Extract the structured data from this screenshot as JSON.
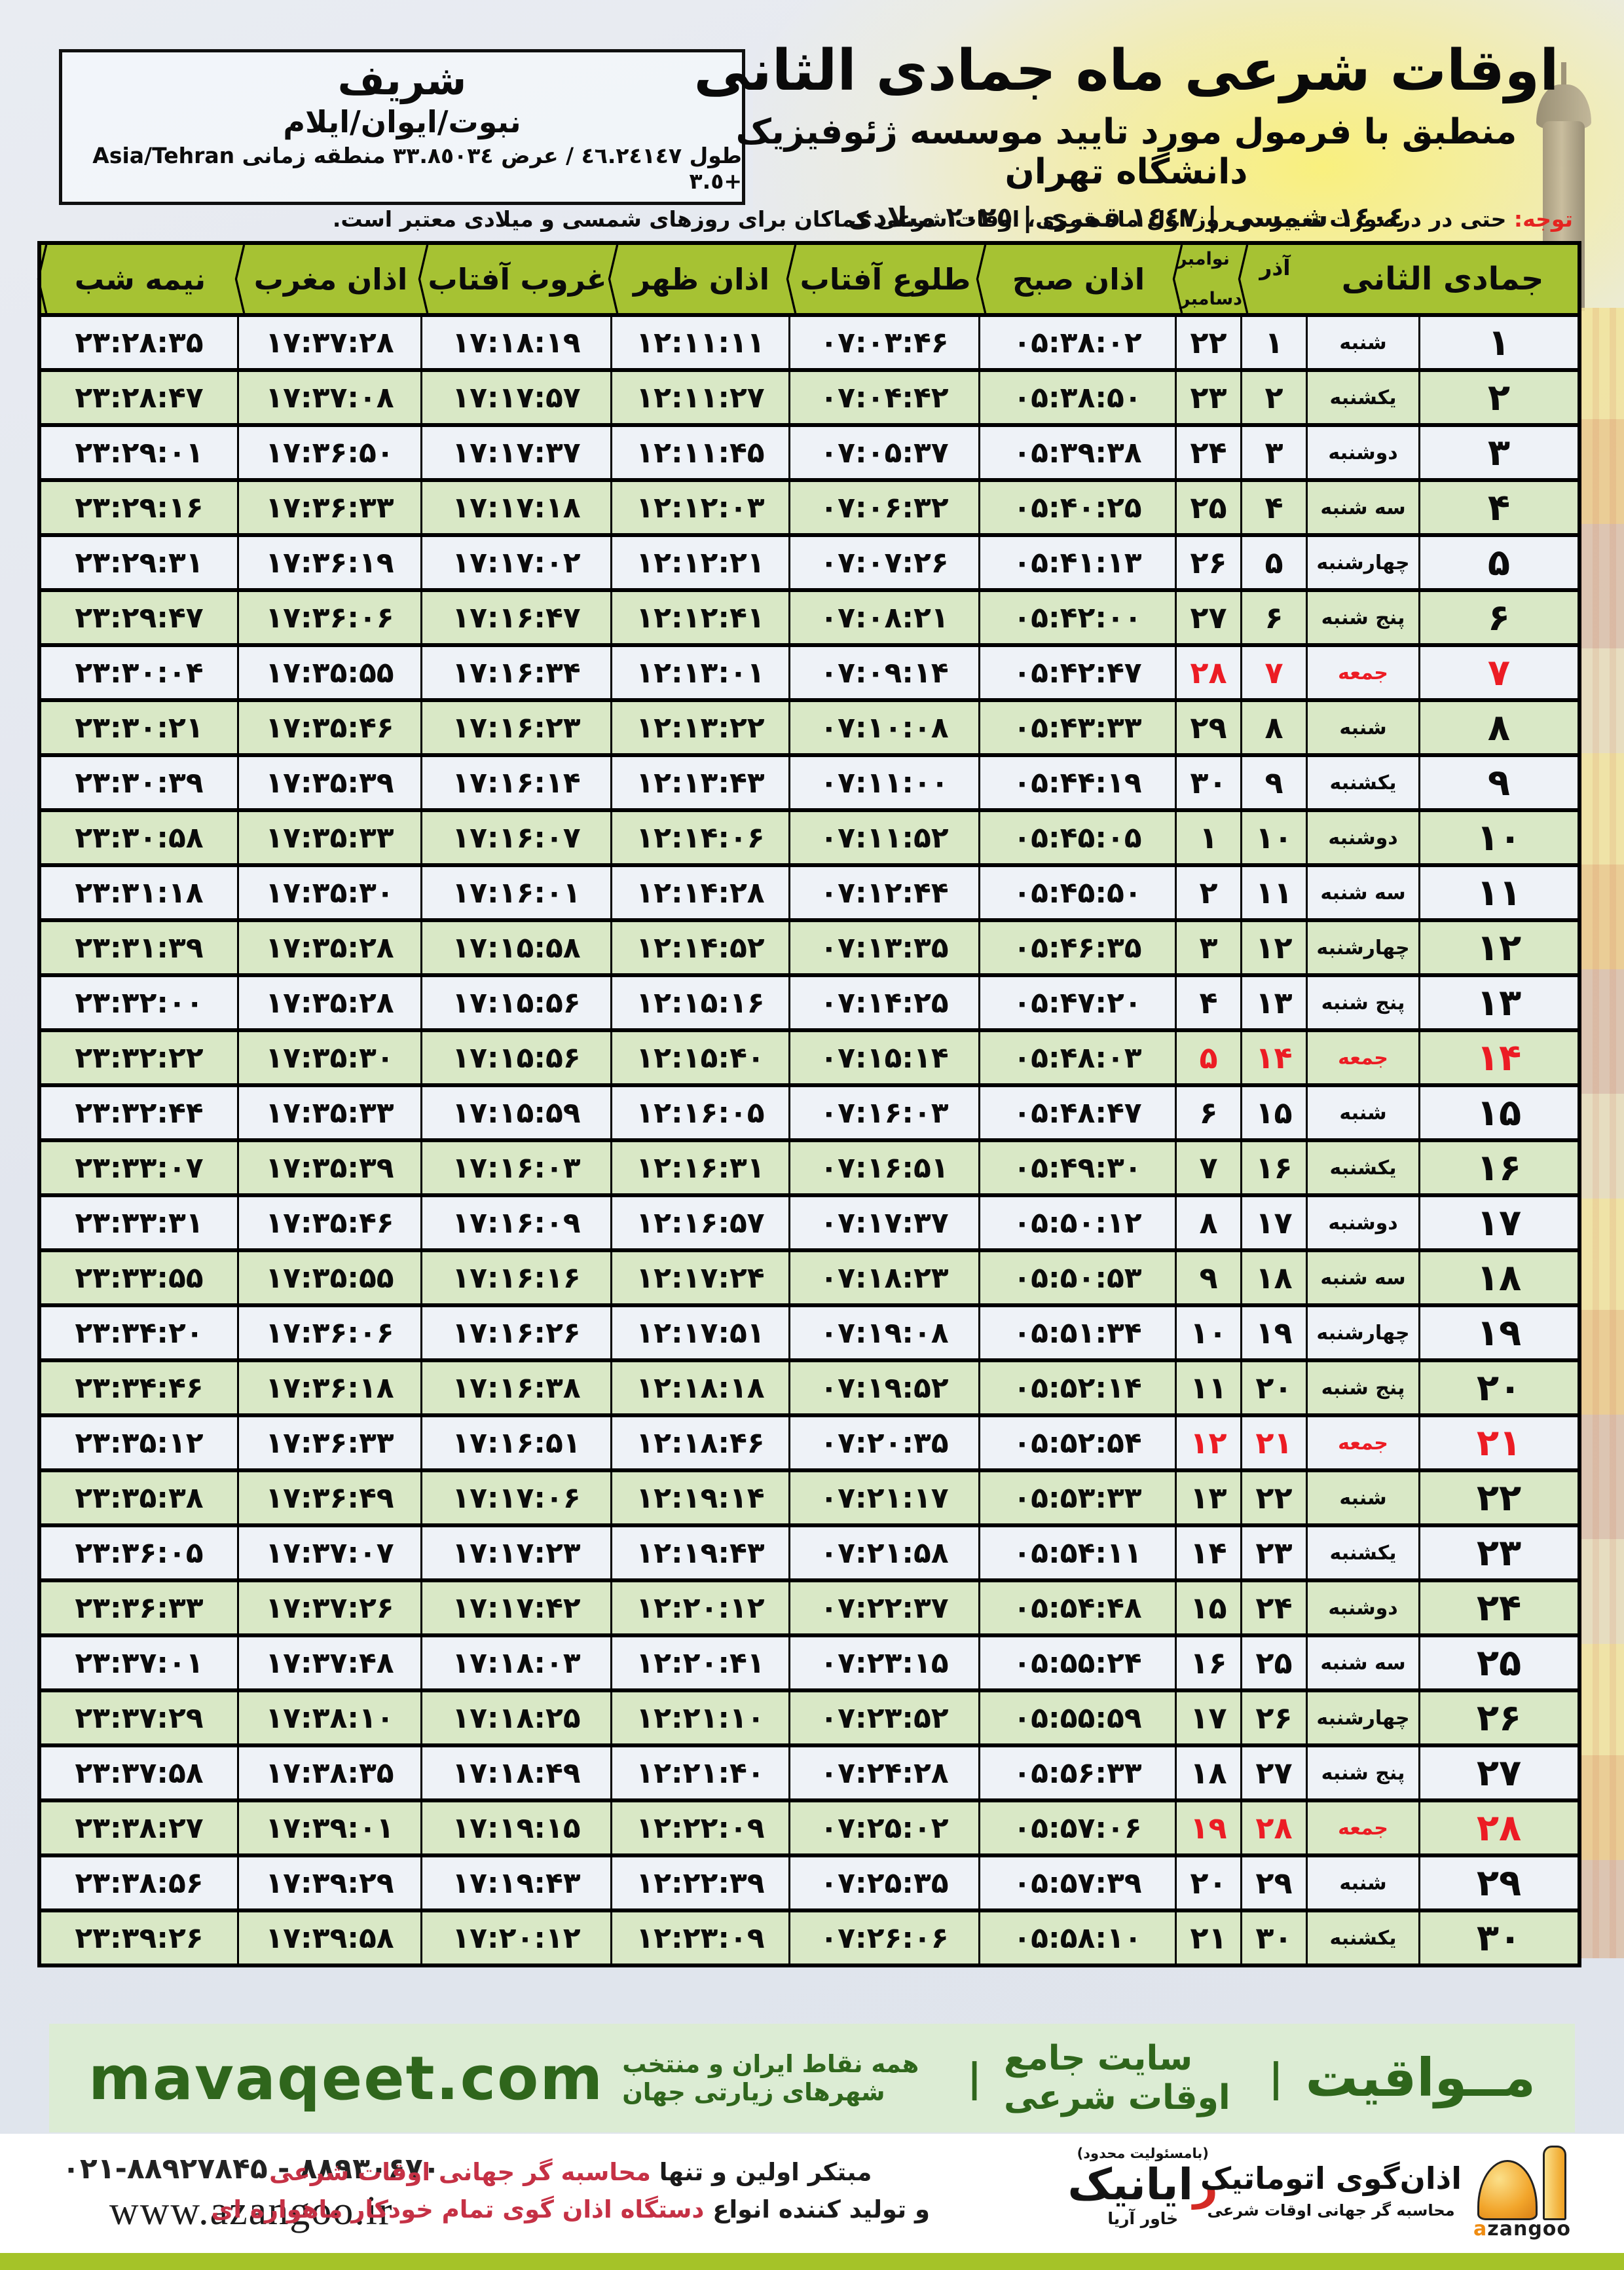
{
  "location": {
    "title": "شریف",
    "subtitle": "نبوت/ایوان/ایلام",
    "coords": "طول ٤٦.٢٤١٤٧ / عرض ٣٣.٨٥٠٣٤ منطقه زمانی Asia/Tehran +٣.٥"
  },
  "header": {
    "title": "اوقات شرعی ماه جمادی الثانی",
    "subtitle": "منطبق با فرمول مورد تایید موسسه ژئوفیزیک دانشگاه تهران",
    "dates": "١٤٠٤ شمسی | ١٤٤٧ قمری | ٢٠٢٥ میلادی"
  },
  "note": {
    "label": "توجه:",
    "text": " حتی در درصورت تغییر در روز اول ماه قمری، اوقات شرعی کماکان برای روزهای شمسی و میلادی معتبر است."
  },
  "colors": {
    "header_green": "#a6c233",
    "row_green": "#d9e8c6",
    "row_light": "#eef2f7",
    "friday_red": "#ec1c24",
    "note_red": "#e52420",
    "mavaqeet_green": "#2f661c",
    "mavaqeet_bg": "#dcecd4",
    "footer_red": "#c53145",
    "lime_strip": "#a5c328",
    "azangoo_orange": "#ef9f1f"
  },
  "table": {
    "columns": {
      "month_day": "جمادی الثانی",
      "azar": "آذر",
      "greg_top": "نوامبر",
      "greg_bottom": "دسامبر",
      "fajr": "اذان صبح",
      "sunrise": "طلوع آفتاب",
      "noon": "اذان ظهر",
      "sunset": "غروب آفتاب",
      "maghrib": "اذان مغرب",
      "midnight": "نیمه شب"
    },
    "rows": [
      {
        "d": 1,
        "w": "شنبه",
        "a": 1,
        "g": 22,
        "fajr": "05:38:02",
        "rise": "07:03:46",
        "noon": "12:11:11",
        "set": "17:18:19",
        "mag": "17:37:28",
        "mid": "23:28:35",
        "f": false
      },
      {
        "d": 2,
        "w": "یکشنبه",
        "a": 2,
        "g": 23,
        "fajr": "05:38:50",
        "rise": "07:04:42",
        "noon": "12:11:27",
        "set": "17:17:57",
        "mag": "17:37:08",
        "mid": "23:28:47",
        "f": false
      },
      {
        "d": 3,
        "w": "دوشنبه",
        "a": 3,
        "g": 24,
        "fajr": "05:39:38",
        "rise": "07:05:37",
        "noon": "12:11:45",
        "set": "17:17:37",
        "mag": "17:36:50",
        "mid": "23:29:01",
        "f": false
      },
      {
        "d": 4,
        "w": "سه شنبه",
        "a": 4,
        "g": 25,
        "fajr": "05:40:25",
        "rise": "07:06:32",
        "noon": "12:12:03",
        "set": "17:17:18",
        "mag": "17:36:33",
        "mid": "23:29:16",
        "f": false
      },
      {
        "d": 5,
        "w": "چهارشنبه",
        "a": 5,
        "g": 26,
        "fajr": "05:41:13",
        "rise": "07:07:26",
        "noon": "12:12:21",
        "set": "17:17:02",
        "mag": "17:36:19",
        "mid": "23:29:31",
        "f": false
      },
      {
        "d": 6,
        "w": "پنج شنبه",
        "a": 6,
        "g": 27,
        "fajr": "05:42:00",
        "rise": "07:08:21",
        "noon": "12:12:41",
        "set": "17:16:47",
        "mag": "17:36:06",
        "mid": "23:29:47",
        "f": false
      },
      {
        "d": 7,
        "w": "جمعه",
        "a": 7,
        "g": 28,
        "fajr": "05:42:47",
        "rise": "07:09:14",
        "noon": "12:13:01",
        "set": "17:16:34",
        "mag": "17:35:55",
        "mid": "23:30:04",
        "f": true
      },
      {
        "d": 8,
        "w": "شنبه",
        "a": 8,
        "g": 29,
        "fajr": "05:43:33",
        "rise": "07:10:08",
        "noon": "12:13:22",
        "set": "17:16:23",
        "mag": "17:35:46",
        "mid": "23:30:21",
        "f": false
      },
      {
        "d": 9,
        "w": "یکشنبه",
        "a": 9,
        "g": 30,
        "fajr": "05:44:19",
        "rise": "07:11:00",
        "noon": "12:13:43",
        "set": "17:16:14",
        "mag": "17:35:39",
        "mid": "23:30:39",
        "f": false
      },
      {
        "d": 10,
        "w": "دوشنبه",
        "a": 10,
        "g": 1,
        "fajr": "05:45:05",
        "rise": "07:11:52",
        "noon": "12:14:06",
        "set": "17:16:07",
        "mag": "17:35:33",
        "mid": "23:30:58",
        "f": false
      },
      {
        "d": 11,
        "w": "سه شنبه",
        "a": 11,
        "g": 2,
        "fajr": "05:45:50",
        "rise": "07:12:44",
        "noon": "12:14:28",
        "set": "17:16:01",
        "mag": "17:35:30",
        "mid": "23:31:18",
        "f": false
      },
      {
        "d": 12,
        "w": "چهارشنبه",
        "a": 12,
        "g": 3,
        "fajr": "05:46:35",
        "rise": "07:13:35",
        "noon": "12:14:52",
        "set": "17:15:58",
        "mag": "17:35:28",
        "mid": "23:31:39",
        "f": false
      },
      {
        "d": 13,
        "w": "پنج شنبه",
        "a": 13,
        "g": 4,
        "fajr": "05:47:20",
        "rise": "07:14:25",
        "noon": "12:15:16",
        "set": "17:15:56",
        "mag": "17:35:28",
        "mid": "23:32:00",
        "f": false
      },
      {
        "d": 14,
        "w": "جمعه",
        "a": 14,
        "g": 5,
        "fajr": "05:48:03",
        "rise": "07:15:14",
        "noon": "12:15:40",
        "set": "17:15:56",
        "mag": "17:35:30",
        "mid": "23:32:22",
        "f": true
      },
      {
        "d": 15,
        "w": "شنبه",
        "a": 15,
        "g": 6,
        "fajr": "05:48:47",
        "rise": "07:16:03",
        "noon": "12:16:05",
        "set": "17:15:59",
        "mag": "17:35:33",
        "mid": "23:32:44",
        "f": false
      },
      {
        "d": 16,
        "w": "یکشنبه",
        "a": 16,
        "g": 7,
        "fajr": "05:49:30",
        "rise": "07:16:51",
        "noon": "12:16:31",
        "set": "17:16:03",
        "mag": "17:35:39",
        "mid": "23:33:07",
        "f": false
      },
      {
        "d": 17,
        "w": "دوشنبه",
        "a": 17,
        "g": 8,
        "fajr": "05:50:12",
        "rise": "07:17:37",
        "noon": "12:16:57",
        "set": "17:16:09",
        "mag": "17:35:46",
        "mid": "23:33:31",
        "f": false
      },
      {
        "d": 18,
        "w": "سه شنبه",
        "a": 18,
        "g": 9,
        "fajr": "05:50:53",
        "rise": "07:18:23",
        "noon": "12:17:24",
        "set": "17:16:16",
        "mag": "17:35:55",
        "mid": "23:33:55",
        "f": false
      },
      {
        "d": 19,
        "w": "چهارشنبه",
        "a": 19,
        "g": 10,
        "fajr": "05:51:34",
        "rise": "07:19:08",
        "noon": "12:17:51",
        "set": "17:16:26",
        "mag": "17:36:06",
        "mid": "23:34:20",
        "f": false
      },
      {
        "d": 20,
        "w": "پنج شنبه",
        "a": 20,
        "g": 11,
        "fajr": "05:52:14",
        "rise": "07:19:52",
        "noon": "12:18:18",
        "set": "17:16:38",
        "mag": "17:36:18",
        "mid": "23:34:46",
        "f": false
      },
      {
        "d": 21,
        "w": "جمعه",
        "a": 21,
        "g": 12,
        "fajr": "05:52:54",
        "rise": "07:20:35",
        "noon": "12:18:46",
        "set": "17:16:51",
        "mag": "17:36:33",
        "mid": "23:35:12",
        "f": true
      },
      {
        "d": 22,
        "w": "شنبه",
        "a": 22,
        "g": 13,
        "fajr": "05:53:33",
        "rise": "07:21:17",
        "noon": "12:19:14",
        "set": "17:17:06",
        "mag": "17:36:49",
        "mid": "23:35:38",
        "f": false
      },
      {
        "d": 23,
        "w": "یکشنبه",
        "a": 23,
        "g": 14,
        "fajr": "05:54:11",
        "rise": "07:21:58",
        "noon": "12:19:43",
        "set": "17:17:23",
        "mag": "17:37:07",
        "mid": "23:36:05",
        "f": false
      },
      {
        "d": 24,
        "w": "دوشنبه",
        "a": 24,
        "g": 15,
        "fajr": "05:54:48",
        "rise": "07:22:37",
        "noon": "12:20:12",
        "set": "17:17:42",
        "mag": "17:37:26",
        "mid": "23:36:33",
        "f": false
      },
      {
        "d": 25,
        "w": "سه شنبه",
        "a": 25,
        "g": 16,
        "fajr": "05:55:24",
        "rise": "07:23:15",
        "noon": "12:20:41",
        "set": "17:18:03",
        "mag": "17:37:48",
        "mid": "23:37:01",
        "f": false
      },
      {
        "d": 26,
        "w": "چهارشنبه",
        "a": 26,
        "g": 17,
        "fajr": "05:55:59",
        "rise": "07:23:52",
        "noon": "12:21:10",
        "set": "17:18:25",
        "mag": "17:38:10",
        "mid": "23:37:29",
        "f": false
      },
      {
        "d": 27,
        "w": "پنج شنبه",
        "a": 27,
        "g": 18,
        "fajr": "05:56:33",
        "rise": "07:24:28",
        "noon": "12:21:40",
        "set": "17:18:49",
        "mag": "17:38:35",
        "mid": "23:37:58",
        "f": false
      },
      {
        "d": 28,
        "w": "جمعه",
        "a": 28,
        "g": 19,
        "fajr": "05:57:06",
        "rise": "07:25:02",
        "noon": "12:22:09",
        "set": "17:19:15",
        "mag": "17:39:01",
        "mid": "23:38:27",
        "f": true
      },
      {
        "d": 29,
        "w": "شنبه",
        "a": 29,
        "g": 20,
        "fajr": "05:57:39",
        "rise": "07:25:35",
        "noon": "12:22:39",
        "set": "17:19:43",
        "mag": "17:39:29",
        "mid": "23:38:56",
        "f": false
      },
      {
        "d": 30,
        "w": "یکشنبه",
        "a": 30,
        "g": 21,
        "fajr": "05:58:10",
        "rise": "07:26:06",
        "noon": "12:23:09",
        "set": "17:20:12",
        "mag": "17:39:58",
        "mid": "23:39:26",
        "f": false
      }
    ]
  },
  "mavaqeet": {
    "brand": "مــواقیت",
    "pipe": "|",
    "tagline": "سایت جامع اوقات شرعی",
    "subtext": "همه نقاط ایران و منتخب شهرهای زیارتی جهان",
    "site": "mavaqeet.com"
  },
  "footer": {
    "phone": "۰۲۱-۸۸۹۲۷۸۴۵ - ۸۸۹۳۰۶۷۰",
    "site": "www.azangoo.ir",
    "slogan1_black": "مبتکر اولین و تنها",
    "slogan1_red": "محاسبه گر جهانی اوقات شرعی",
    "slogan2_black": "و تولید کننده انواع",
    "slogan2_red": "دستگاه اذان گوی تمام خودکار ماهواره ای",
    "rayanik_note": "(بامسئولیت محدود)",
    "rayanik_initial": "ر",
    "rayanik_rest": "ایانیک",
    "rayanik_sub": "خاور آریا",
    "azangoo_title": "اذان‌گوی اتوماتیک",
    "azangoo_sub": "محاسبه گر جهانی اوقات شرعی",
    "azangoo_latin_first": "a",
    "azangoo_latin_rest": "zangoo"
  }
}
